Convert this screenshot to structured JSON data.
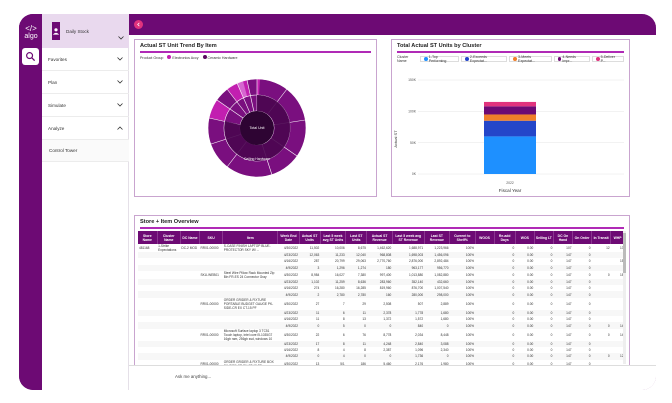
{
  "app": {
    "logo_text": "algo"
  },
  "sidebar": {
    "user_name": "Daily Stock",
    "items": [
      {
        "label": "Favorites",
        "expanded": false
      },
      {
        "label": "Plan",
        "expanded": false
      },
      {
        "label": "Simulate",
        "expanded": false
      },
      {
        "label": "Analyze",
        "expanded": true
      }
    ],
    "sub_items": [
      {
        "label": "Control Tower"
      }
    ]
  },
  "trend_card": {
    "title": "Actual ST Unit Trend By Item",
    "legend_title": "Product Group",
    "legend": [
      {
        "label": "Electronics Accy",
        "color": "#c21fb0"
      },
      {
        "label": "Ceramic Hardware",
        "color": "#5a0a60"
      }
    ],
    "center_label": "Total Unit",
    "inner_label": "Ceiling Hardware",
    "colors": {
      "outer": "#7a0f7f",
      "inner": "#4a0650",
      "accent": "#c21fb0",
      "core": "#2e0433"
    }
  },
  "cluster_card": {
    "title": "Total Actual ST Units by Cluster",
    "legend_title": "Cluster Name",
    "legend": [
      {
        "label": "1-Top Performing",
        "color": "#1e90ff"
      },
      {
        "label": "2-Exceeds Expectat...",
        "color": "#2446c9"
      },
      {
        "label": "3-Meets Expectat...",
        "color": "#f07f2a"
      },
      {
        "label": "4-Needs Impr...",
        "color": "#6d0a74"
      },
      {
        "label": "5-Deliver P...",
        "color": "#e0337d"
      }
    ],
    "y_axis_label": "Actual ST",
    "x_axis_label": "Fiscal Year",
    "x_tick": "2022",
    "chart_data": {
      "type": "bar",
      "categories": [
        "2022"
      ],
      "series": [
        {
          "name": "1-Top Performing",
          "values": [
            60000
          ]
        },
        {
          "name": "2-Exceeds Expectat...",
          "values": [
            25000
          ]
        },
        {
          "name": "3-Meets Expectat...",
          "values": [
            10000
          ]
        },
        {
          "name": "4-Needs Impr...",
          "values": [
            13000
          ]
        },
        {
          "name": "5-Deliver P...",
          "values": [
            7000
          ]
        }
      ],
      "xlabel": "Fiscal Year",
      "ylabel": "Actual ST",
      "yticks": [
        "0K",
        "50K",
        "100K",
        "150K"
      ],
      "ylim": [
        0,
        150000
      ],
      "stacked": true
    }
  },
  "table_card": {
    "title": "Store + Item Overview",
    "headers": [
      "Store Name",
      "Cluster Name",
      "DC Name",
      "SKU",
      "Item",
      "Week End Date",
      "Actual ST Units",
      "Last 5 week avg ST Units",
      "Last ST Units",
      "Actual ST Revenue",
      "Last 5 week avg ST Revenue",
      "Last ST Revenue",
      "Current to Shelf%",
      "WOOS",
      "Re-add Days",
      "WOS",
      "Selling LT",
      "DC On Hand",
      "On Order",
      "In Transit",
      "WHP"
    ],
    "rows": [
      [
        "481168",
        "1-Strike Expectations",
        "DC-2 MOD",
        "RR01-00000",
        "S-CASE FINISH LAPTOP BLUE-PROTECTOR SKY W/ ...",
        "4/30/2022",
        "11,502",
        "10,006",
        "8,675",
        "1,462,620",
        "1,688,971",
        "1,223,966",
        "100%",
        "",
        "0",
        "0.00",
        "0",
        "107",
        "0",
        "12",
        "13"
      ],
      [
        "",
        "",
        "",
        "",
        "",
        "4/23/2022",
        "12,063",
        "11,233",
        "12,040",
        "968,808",
        "1,698,003",
        "1,456,096",
        "100%",
        "",
        "0",
        "0.00",
        "0",
        "147",
        "0",
        "",
        ""
      ],
      [
        "",
        "",
        "",
        "",
        "",
        "4/16/2022",
        "287",
        "20,799",
        "29,063",
        "2,770,760",
        "2,876,000",
        "2,892,484",
        "100%",
        "",
        "0",
        "0.00",
        "0",
        "147",
        "0",
        "",
        "15"
      ],
      [
        "",
        "",
        "",
        "",
        "",
        "4/9/2022",
        "3",
        "1,296",
        "1,274",
        "180",
        "963,177",
        "956,770",
        "100%",
        "",
        "0",
        "0.00",
        "0",
        "147",
        "0",
        "",
        ""
      ],
      [
        "",
        "",
        "",
        "SKU-WEB01",
        "Steel Wire Pillow Rack Mounted Zip Bin FR-ES 24 Connector Gray",
        "4/30/2022",
        "8,984",
        "16,027",
        "7,380",
        "997,400",
        "1,013,880",
        "1,082,880",
        "100%",
        "",
        "0",
        "0.00",
        "0",
        "147",
        "0",
        "0",
        "18"
      ],
      [
        "",
        "",
        "",
        "",
        "",
        "4/23/2022",
        "1,102",
        "11,259",
        "8,636",
        "283,960",
        "352,140",
        "432,660",
        "100%",
        "",
        "0",
        "0.00",
        "0",
        "147",
        "0",
        "",
        ""
      ],
      [
        "",
        "",
        "",
        "",
        "",
        "4/16/2022",
        "274",
        "16,280",
        "16,285",
        "819,960",
        "876,700",
        "1,007,540",
        "100%",
        "",
        "0",
        "0.00",
        "0",
        "147",
        "0",
        "",
        ""
      ],
      [
        "",
        "",
        "",
        "",
        "",
        "4/9/2022",
        "2",
        "2,780",
        "2,780",
        "160",
        "280,000",
        "298,000",
        "100%",
        "",
        "0",
        "0.00",
        "0",
        "147",
        "0",
        "",
        ""
      ],
      [
        "",
        "",
        "",
        "RR01-00000",
        "ORDER GRIDER & FIXTURE PORTABLE BUDGET GAUGE PK-SIDE-CR EX CT-15 PF",
        "4/30/2022",
        "27",
        "7",
        "29",
        "2,508",
        "507",
        "2,889",
        "100%",
        "",
        "0",
        "0.00",
        "0",
        "147",
        "0",
        "",
        ""
      ],
      [
        "",
        "",
        "",
        "",
        "",
        "4/23/2022",
        "11",
        "6",
        "11",
        "2,378",
        "1,778",
        "1,680",
        "100%",
        "",
        "0",
        "0.00",
        "0",
        "147",
        "0",
        "",
        ""
      ],
      [
        "",
        "",
        "",
        "",
        "",
        "4/16/2022",
        "11",
        "8",
        "13",
        "1,372",
        "1,572",
        "1,680",
        "100%",
        "",
        "0",
        "0.00",
        "0",
        "147",
        "0",
        "",
        ""
      ],
      [
        "",
        "",
        "",
        "",
        "",
        "4/9/2022",
        "0",
        "5",
        "0",
        "0",
        "840",
        "0",
        "100%",
        "",
        "0",
        "0.00",
        "0",
        "147",
        "0",
        "0",
        "14"
      ],
      [
        "",
        "",
        "",
        "RR01-00000",
        "Microsoft Surface laptop 3 TC51 Touch laptop, intel core i5-1035G7 16gb ram, 256gb ssd, windows 10",
        "4/30/2022",
        "22",
        "6",
        "76",
        "8,778",
        "2,034",
        "8,448",
        "100%",
        "",
        "0",
        "0.00",
        "0",
        "147",
        "0",
        "0",
        "14"
      ],
      [
        "",
        "",
        "",
        "",
        "",
        "4/23/2022",
        "17",
        "8",
        "11",
        "4,248",
        "2,840",
        "3,088",
        "100%",
        "",
        "0",
        "0.00",
        "0",
        "147",
        "0",
        "",
        ""
      ],
      [
        "",
        "",
        "",
        "",
        "",
        "4/16/2022",
        "8",
        "4",
        "8",
        "2,387",
        "1,096",
        "2,340",
        "100%",
        "",
        "0",
        "0.00",
        "0",
        "147",
        "0",
        "",
        ""
      ],
      [
        "",
        "",
        "",
        "",
        "",
        "4/9/2022",
        "0",
        "4",
        "0",
        "0",
        "1,736",
        "0",
        "100%",
        "",
        "0",
        "0.00",
        "0",
        "147",
        "0",
        "0",
        "12"
      ],
      [
        "",
        "",
        "",
        "RR01-00000",
        "ORDER GRIDER & FIXTURE BOX SK-SIDE-CR EX CT-15 PF",
        "4/30/2022",
        "13",
        "5/1",
        "186",
        "5,460",
        "2,176",
        "1,980",
        "100%",
        "",
        "0",
        "0.00",
        "0",
        "147",
        "0",
        "",
        ""
      ],
      [
        "",
        "",
        "",
        "",
        "",
        "4/23/2022",
        "8",
        "0",
        "7",
        "1,890",
        "1,176",
        "1,640",
        "100%",
        "",
        "0",
        "0.00",
        "0",
        "147",
        "0",
        "",
        ""
      ],
      [
        "",
        "",
        "",
        "",
        "",
        "4/16/2022",
        "8",
        "21",
        "21",
        "128",
        "3,292",
        "1,640",
        "100%",
        "",
        "0",
        "0.00",
        "0",
        "147",
        "0",
        "",
        ""
      ],
      [
        "",
        "",
        "",
        "RR01-00000",
        "ORDER GRIDER & ITB PRINTER 6.5 DISPLAY LOCK FR-ES EX CT-15 PF",
        "4/30/2022",
        "19",
        "97",
        "87",
        "1,312",
        "12,762",
        "11,888",
        "100%",
        "",
        "0",
        "0.00",
        "0",
        "147",
        "0",
        "0",
        "12"
      ],
      [
        "",
        "",
        "",
        "",
        "",
        "4/23/2022",
        "24",
        "",
        "",
        "4,168",
        "",
        "",
        "100%",
        "",
        "0",
        "0.00",
        "0",
        "147",
        "0",
        "",
        ""
      ]
    ]
  },
  "ask": {
    "placeholder": "Ask me anything..."
  }
}
